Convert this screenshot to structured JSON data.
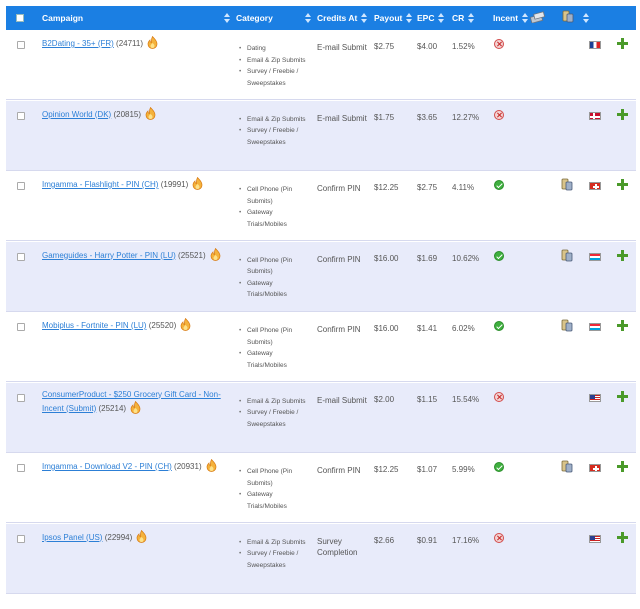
{
  "header": {
    "campaign": "Campaign",
    "category": "Category",
    "credits_at": "Credits At",
    "payout": "Payout",
    "epc": "EPC",
    "cr": "CR",
    "incent": "Incent",
    "col_icon_1": "device-stack-icon",
    "col_icon_2": "mobile-device-icon"
  },
  "colors": {
    "header_bg": "#1b7fe3",
    "row_alt_bg": "#e8ebfa",
    "link": "#2c7fd6",
    "add_green": "#4a9a2a",
    "incent_yes": "#3faf3f",
    "incent_no": "#d34b4b"
  },
  "rows": [
    {
      "name": "B2Dating - 35+ (FR)",
      "id": "(24711)",
      "categories": [
        "Dating",
        "Email & Zip Submits",
        "Survey / Freebie / Sweepstakes"
      ],
      "credits_at": "E-mail Submit",
      "payout": "$2.75",
      "epc": "$4.00",
      "cr": "1.52%",
      "incent": "no",
      "mobile": false,
      "flag": "fr",
      "hot": true
    },
    {
      "name": "Opinion World (DK)",
      "id": "(20815)",
      "categories": [
        "Email & Zip Submits",
        "Survey / Freebie / Sweepstakes"
      ],
      "credits_at": "E-mail Submit",
      "payout": "$1.75",
      "epc": "$3.65",
      "cr": "12.27%",
      "incent": "no",
      "mobile": false,
      "flag": "dk",
      "hot": true
    },
    {
      "name": "Imgamma - Flashlight - PIN (CH)",
      "id": "(19991)",
      "categories": [
        "Cell Phone (Pin Submits)",
        "Gateway Trials/Mobiles"
      ],
      "credits_at": "Confirm PIN",
      "payout": "$12.25",
      "epc": "$2.75",
      "cr": "4.11%",
      "incent": "yes",
      "mobile": true,
      "flag": "ch",
      "hot": true
    },
    {
      "name": "Gameguides - Harry Potter - PIN (LU)",
      "id": "(25521)",
      "categories": [
        "Cell Phone (Pin Submits)",
        "Gateway Trials/Mobiles"
      ],
      "credits_at": "Confirm PIN",
      "payout": "$16.00",
      "epc": "$1.69",
      "cr": "10.62%",
      "incent": "yes",
      "mobile": true,
      "flag": "lu",
      "hot": true
    },
    {
      "name": "Mobiplus - Fortnite - PIN (LU)",
      "id": "(25520)",
      "categories": [
        "Cell Phone (Pin Submits)",
        "Gateway Trials/Mobiles"
      ],
      "credits_at": "Confirm PIN",
      "payout": "$16.00",
      "epc": "$1.41",
      "cr": "6.02%",
      "incent": "yes",
      "mobile": true,
      "flag": "lu",
      "hot": true
    },
    {
      "name": "ConsumerProduct - $250 Grocery Gift Card - Non-Incent (Submit)",
      "id": "(25214)",
      "categories": [
        "Email & Zip Submits",
        "Survey / Freebie / Sweepstakes"
      ],
      "credits_at": "E-mail Submit",
      "payout": "$2.00",
      "epc": "$1.15",
      "cr": "15.54%",
      "incent": "no",
      "mobile": false,
      "flag": "us",
      "hot": true
    },
    {
      "name": "Imgamma - Download V2 - PIN (CH)",
      "id": "(20931)",
      "categories": [
        "Cell Phone (Pin Submits)",
        "Gateway Trials/Mobiles"
      ],
      "credits_at": "Confirm PIN",
      "payout": "$12.25",
      "epc": "$1.07",
      "cr": "5.99%",
      "incent": "yes",
      "mobile": true,
      "flag": "ch",
      "hot": true
    },
    {
      "name": "Ipsos Panel (US)",
      "id": "(22994)",
      "categories": [
        "Email & Zip Submits",
        "Survey / Freebie / Sweepstakes"
      ],
      "credits_at": "Survey Completion",
      "payout": "$2.66",
      "epc": "$0.91",
      "cr": "17.16%",
      "incent": "no",
      "mobile": false,
      "flag": "us",
      "hot": true
    }
  ]
}
